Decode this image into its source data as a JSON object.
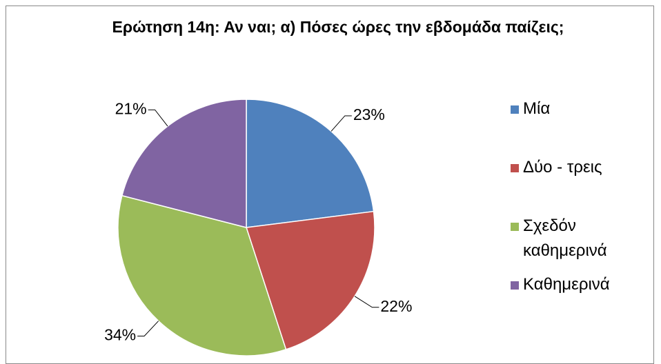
{
  "chart_data": {
    "type": "pie",
    "title": "Ερώτηση 14η: Αν ναι; α) Πόσες ώρες την εβδομάδα παίζεις;",
    "categories": [
      "Μία",
      "Δύο - τρεις",
      "Σχεδόν καθημερινά",
      "Καθημερινά"
    ],
    "values": [
      23,
      22,
      34,
      21
    ],
    "value_labels": [
      "23%",
      "22%",
      "34%",
      "21%"
    ],
    "colors": [
      "#4f81bd",
      "#c0504d",
      "#9bbb59",
      "#8064a2"
    ],
    "legend": "right"
  }
}
